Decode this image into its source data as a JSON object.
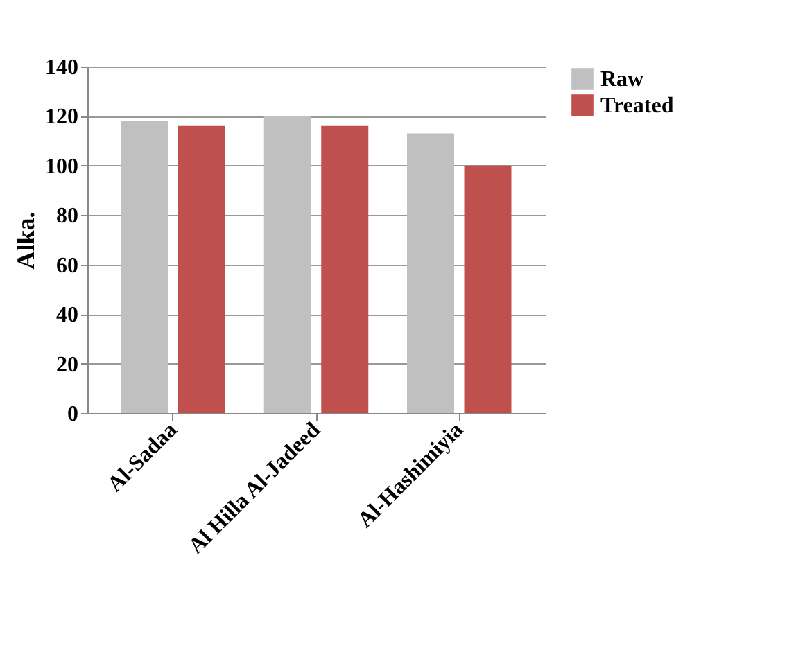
{
  "chart_data": {
    "type": "bar",
    "ylabel": "Alka.",
    "categories": [
      "Al-Sadaa",
      "Al Hilla  Al-Jadeed",
      "Al-Hashimiyia"
    ],
    "series": [
      {
        "name": "Raw",
        "color": "#c0c0c0",
        "values": [
          118,
          120,
          113
        ]
      },
      {
        "name": "Treated",
        "color": "#c0504d",
        "values": [
          116,
          116,
          100
        ]
      }
    ],
    "ylim": [
      0,
      140
    ],
    "yticks": [
      0,
      20,
      40,
      60,
      80,
      100,
      120,
      140
    ],
    "grid": "y",
    "legend": "right"
  }
}
